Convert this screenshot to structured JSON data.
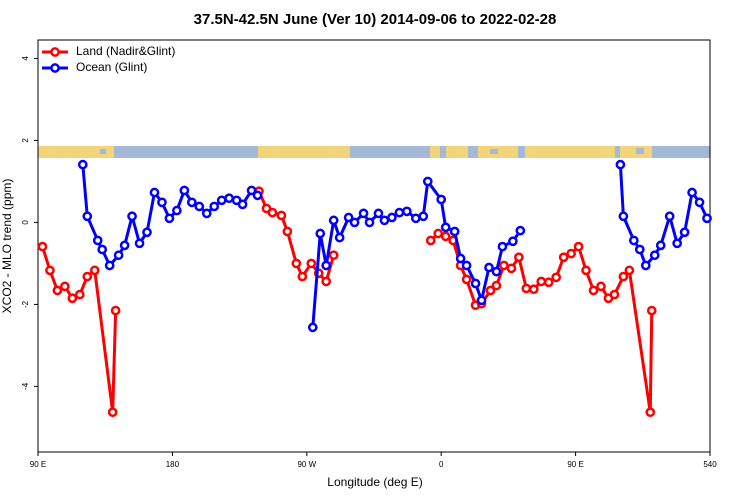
{
  "chart_data": {
    "type": "line",
    "title": "37.5N-42.5N June (Ver 10)   2014-09-06 to 2022-02-28",
    "x_label": "Longitude (deg E)",
    "y_label": "XCO2 - MLO trend (ppm)",
    "xlim": [
      90,
      540
    ],
    "xticks": [
      {
        "value": 90,
        "label": "90 E"
      },
      180,
      {
        "value": 270,
        "label": "90 W"
      },
      {
        "value": 360,
        "label": "0"
      },
      {
        "value": 450,
        "label": "90 E"
      },
      540
    ],
    "ylim": [
      -5.6,
      4.45
    ],
    "yticks": [
      -4,
      -2,
      0,
      2,
      4
    ],
    "legend": "top-left",
    "series": [
      {
        "name": "Land (Nadir&Glint)",
        "color": "#ff0000",
        "x": [
          93,
          98,
          103,
          108,
          113,
          118,
          123,
          128,
          140,
          142,
          null,
          238,
          243,
          247,
          253,
          257,
          263,
          267,
          273,
          278,
          283,
          288,
          null,
          353,
          358,
          363,
          368,
          373,
          377,
          383,
          387,
          393,
          397,
          402,
          407,
          412,
          417,
          422,
          427,
          432,
          437,
          442,
          447,
          452,
          457,
          462,
          467,
          472,
          476,
          482,
          486,
          500,
          501
        ],
        "values": [
          -0.59,
          -1.17,
          -1.66,
          -1.56,
          -1.85,
          -1.76,
          -1.32,
          -1.17,
          -4.63,
          -2.15,
          null,
          0.76,
          0.34,
          0.24,
          0.17,
          -0.22,
          -1.0,
          -1.32,
          -1.0,
          -1.24,
          -1.44,
          -0.8,
          null,
          -0.44,
          -0.27,
          -0.34,
          -0.44,
          -1.05,
          -1.39,
          -2.02,
          -1.98,
          -1.66,
          -1.54,
          -1.05,
          -1.12,
          -0.85,
          -1.61,
          -1.63,
          -1.44,
          -1.46,
          -1.34,
          -0.85,
          -0.76,
          -0.59,
          -1.17,
          -1.66,
          -1.56,
          -1.85,
          -1.76,
          -1.32,
          -1.17,
          -4.63,
          -2.15
        ]
      },
      {
        "name": "Ocean (Glint)",
        "color": "#0000ff",
        "x": [
          120,
          123,
          130,
          133,
          138,
          144,
          148,
          153,
          158,
          163,
          168,
          173,
          178,
          183,
          188,
          193,
          198,
          203,
          208,
          213,
          218,
          223,
          227,
          233,
          237,
          null,
          274,
          279,
          283,
          288,
          292,
          298,
          302,
          308,
          312,
          318,
          322,
          327,
          332,
          337,
          343,
          348,
          351,
          360,
          363,
          369,
          373,
          377,
          383,
          387,
          392,
          397,
          401,
          408,
          413,
          null,
          480,
          482,
          489,
          493,
          497,
          503,
          507,
          513,
          518,
          523,
          528,
          533,
          538
        ],
        "values": [
          1.41,
          0.15,
          -0.44,
          -0.66,
          -1.05,
          -0.8,
          -0.56,
          0.15,
          -0.51,
          -0.24,
          0.73,
          0.49,
          0.1,
          0.29,
          0.78,
          0.49,
          0.39,
          0.22,
          0.39,
          0.54,
          0.59,
          0.54,
          0.44,
          0.78,
          0.66,
          null,
          -2.56,
          -0.27,
          -1.05,
          0.05,
          -0.37,
          0.12,
          0,
          0.22,
          0,
          0.22,
          0.05,
          0.12,
          0.24,
          0.27,
          0.1,
          0.15,
          1.0,
          0.56,
          -0.12,
          -0.22,
          -0.88,
          -1.05,
          -1.49,
          -1.9,
          -1.1,
          -1.2,
          -0.59,
          -0.46,
          -0.2,
          null,
          1.41,
          0.15,
          -0.44,
          -0.66,
          -1.05,
          -0.8,
          -0.56,
          0.15,
          -0.51,
          -0.24,
          0.73,
          0.49,
          0.1
        ]
      }
    ]
  }
}
